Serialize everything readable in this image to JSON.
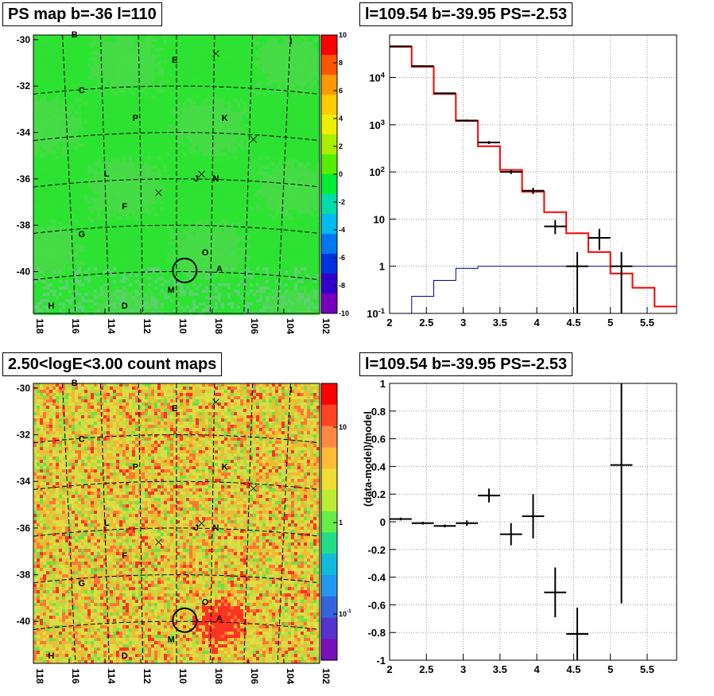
{
  "panels": {
    "top_left_title": "PS map b=-36 l=110",
    "top_right_title": "l=109.54 b=-39.95 PS=-2.53",
    "bottom_left_title": "2.50<logE<3.00 count maps",
    "bottom_right_title": "l=109.54 b=-39.95 PS=-2.53"
  },
  "colors": {
    "map_green": "#33ee33",
    "map_orange": "#ddbb33",
    "data": "#000000",
    "model": "#ff0000",
    "third_series": "#0000aa"
  },
  "chart_data": [
    {
      "type": "heatmap",
      "title": "PS map b=-36 l=110",
      "x_ticks": [
        "118",
        "116",
        "114",
        "112",
        "110",
        "108",
        "106",
        "104",
        "102"
      ],
      "y_ticks": [
        "-30",
        "-32",
        "-34",
        "-36",
        "-38",
        "-40"
      ],
      "xlim": [
        118,
        102
      ],
      "ylim": [
        -41.8,
        -29.8
      ],
      "colorbar_ticks": [
        "10",
        "8",
        "6",
        "4",
        "2",
        "0",
        "-2",
        "-4",
        "-6",
        "-8",
        "-10"
      ],
      "colorbar_range": [
        -10,
        10
      ],
      "source_labels": [
        {
          "label": "B",
          "l": 115.7,
          "b": -29.9
        },
        {
          "label": "E",
          "l": 110.1,
          "b": -31.0
        },
        {
          "label": "I",
          "l": 103.6,
          "b": -30.2
        },
        {
          "label": "C",
          "l": 115.3,
          "b": -32.3
        },
        {
          "label": "P",
          "l": 112.3,
          "b": -33.5
        },
        {
          "label": "K",
          "l": 107.3,
          "b": -33.5
        },
        {
          "label": "L",
          "l": 113.9,
          "b": -35.9
        },
        {
          "label": "J",
          "l": 108.9,
          "b": -36.1
        },
        {
          "label": "N",
          "l": 107.8,
          "b": -36.1
        },
        {
          "label": "F",
          "l": 112.9,
          "b": -37.3
        },
        {
          "label": "G",
          "l": 115.3,
          "b": -38.5
        },
        {
          "label": "O",
          "l": 108.4,
          "b": -39.3
        },
        {
          "label": "A",
          "l": 107.6,
          "b": -40.0
        },
        {
          "label": "M",
          "l": 110.3,
          "b": -40.9
        },
        {
          "label": "H",
          "l": 117.0,
          "b": -41.6
        },
        {
          "label": "D",
          "l": 112.9,
          "b": -41.6
        }
      ],
      "crosses": [
        {
          "l": 107.8,
          "b": -30.6
        },
        {
          "l": 105.7,
          "b": -34.3
        },
        {
          "l": 111.0,
          "b": -36.6
        },
        {
          "l": 108.6,
          "b": -35.8
        }
      ],
      "target": {
        "l": 109.54,
        "b": -39.95
      }
    },
    {
      "type": "line",
      "title": "l=109.54 b=-39.95 PS=-2.53",
      "xlim": [
        2,
        5.9
      ],
      "ylim": [
        0.1,
        80000
      ],
      "log_y": true,
      "x_ticks": [
        "2",
        "2.5",
        "3",
        "3.5",
        "4",
        "4.5",
        "5",
        "5.5"
      ],
      "y_ticks": [
        "10^-1",
        "1",
        "10",
        "10^2",
        "10^3",
        "10^4"
      ],
      "grid": true,
      "bin_edges": [
        2.0,
        2.3,
        2.6,
        2.9,
        3.2,
        3.5,
        3.8,
        4.1,
        4.4,
        4.7,
        5.0,
        5.3,
        5.6,
        5.9
      ],
      "series": [
        {
          "values": [
            45000,
            17000,
            4500,
            1200,
            350,
            110,
            38,
            14,
            5,
            2,
            0.7,
            0.35,
            0.14
          ]
        },
        {
          "values": [
            0.1,
            0.23,
            0.5,
            0.9,
            1.0,
            1.0,
            1.0,
            1.0,
            1.0,
            1.0,
            1.0,
            1.0,
            1.0
          ]
        }
      ],
      "data_points": [
        {
          "x": 2.15,
          "y": 46000,
          "ylo": 45500,
          "yhi": 46500
        },
        {
          "x": 2.45,
          "y": 17500,
          "ylo": 17200,
          "yhi": 17800
        },
        {
          "x": 2.75,
          "y": 4650,
          "ylo": 4500,
          "yhi": 4800
        },
        {
          "x": 3.05,
          "y": 1230,
          "ylo": 1170,
          "yhi": 1290
        },
        {
          "x": 3.35,
          "y": 420,
          "ylo": 390,
          "yhi": 450
        },
        {
          "x": 3.65,
          "y": 100,
          "ylo": 90,
          "yhi": 110
        },
        {
          "x": 3.95,
          "y": 40,
          "ylo": 34,
          "yhi": 46
        },
        {
          "x": 4.25,
          "y": 7,
          "ylo": 4.8,
          "yhi": 9.5
        },
        {
          "x": 4.55,
          "y": 1.0,
          "ylo": 0.1,
          "yhi": 2.0
        },
        {
          "x": 4.85,
          "y": 4,
          "ylo": 2.2,
          "yhi": 6.2
        },
        {
          "x": 5.15,
          "y": 1.0,
          "ylo": 0.1,
          "yhi": 2.0
        }
      ]
    },
    {
      "type": "heatmap",
      "title": "2.50<logE<3.00 count maps",
      "x_ticks": [
        "118",
        "116",
        "114",
        "112",
        "110",
        "108",
        "106",
        "104",
        "102"
      ],
      "y_ticks": [
        "-30",
        "-32",
        "-34",
        "-36",
        "-38",
        "-40"
      ],
      "xlim": [
        118,
        102
      ],
      "ylim": [
        -41.8,
        -29.8
      ],
      "colorbar_ticks": [
        "10",
        "1",
        "10^-1"
      ],
      "colorbar_scale": "log",
      "hotspot": {
        "l": 107.6,
        "b": -40.0
      }
    },
    {
      "type": "scatter",
      "title": "l=109.54 b=-39.95 PS=-2.53",
      "ylabel": "(data-model)/model",
      "xlim": [
        2,
        5.9
      ],
      "ylim": [
        -1,
        1
      ],
      "x_ticks": [
        "2",
        "2.5",
        "3",
        "3.5",
        "4",
        "4.5",
        "5",
        "5.5"
      ],
      "y_ticks": [
        "1",
        "0.8",
        "0.6",
        "0.4",
        "0.2",
        "0",
        "-0.2",
        "-0.4",
        "-0.6",
        "-0.8",
        "-1"
      ],
      "grid": true,
      "points": [
        {
          "x": 2.15,
          "y": 0.02,
          "err": 0.01
        },
        {
          "x": 2.45,
          "y": -0.01,
          "err": 0.01
        },
        {
          "x": 2.75,
          "y": -0.03,
          "err": 0.01
        },
        {
          "x": 3.05,
          "y": -0.01,
          "err": 0.02
        },
        {
          "x": 3.35,
          "y": 0.19,
          "err": 0.05
        },
        {
          "x": 3.65,
          "y": -0.09,
          "err": 0.08
        },
        {
          "x": 3.95,
          "y": 0.04,
          "err": 0.16
        },
        {
          "x": 4.25,
          "y": -0.51,
          "err": 0.18
        },
        {
          "x": 4.55,
          "y": -0.81,
          "err": 0.19
        },
        {
          "x": 5.15,
          "y": 0.41,
          "err": 1.0
        }
      ]
    }
  ]
}
